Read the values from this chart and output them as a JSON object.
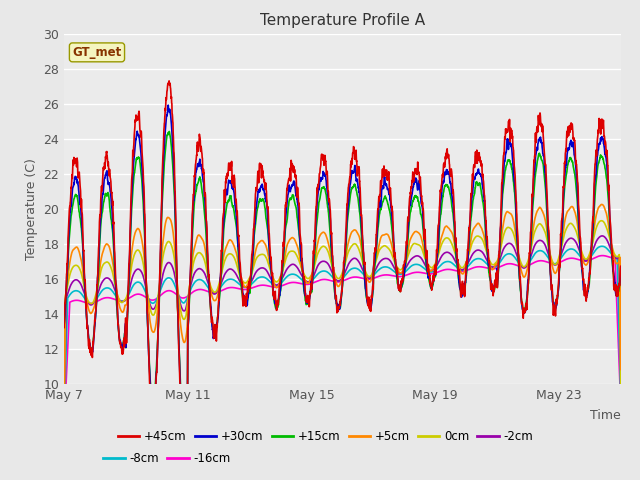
{
  "title": "Temperature Profile A",
  "xlabel": "Time",
  "ylabel": "Temperature (C)",
  "ylim": [
    10,
    30
  ],
  "fig_bg": "#e8e8e8",
  "plot_bg": "#ebebeb",
  "legend_label": "GT_met",
  "series_order": [
    "+45cm",
    "+30cm",
    "+15cm",
    "+5cm",
    "0cm",
    "-2cm",
    "-8cm",
    "-16cm"
  ],
  "series_colors": {
    "+45cm": "#dd0000",
    "+30cm": "#0000cc",
    "+15cm": "#00bb00",
    "+5cm": "#ff8800",
    "0cm": "#cccc00",
    "-2cm": "#9900aa",
    "-8cm": "#00bbcc",
    "-16cm": "#ff00cc"
  },
  "xtick_labels": [
    "May 7",
    "May 11",
    "May 15",
    "May 19",
    "May 23"
  ],
  "xtick_positions": [
    0,
    4,
    8,
    12,
    16
  ],
  "n_days": 18,
  "pts_per_day": 144
}
